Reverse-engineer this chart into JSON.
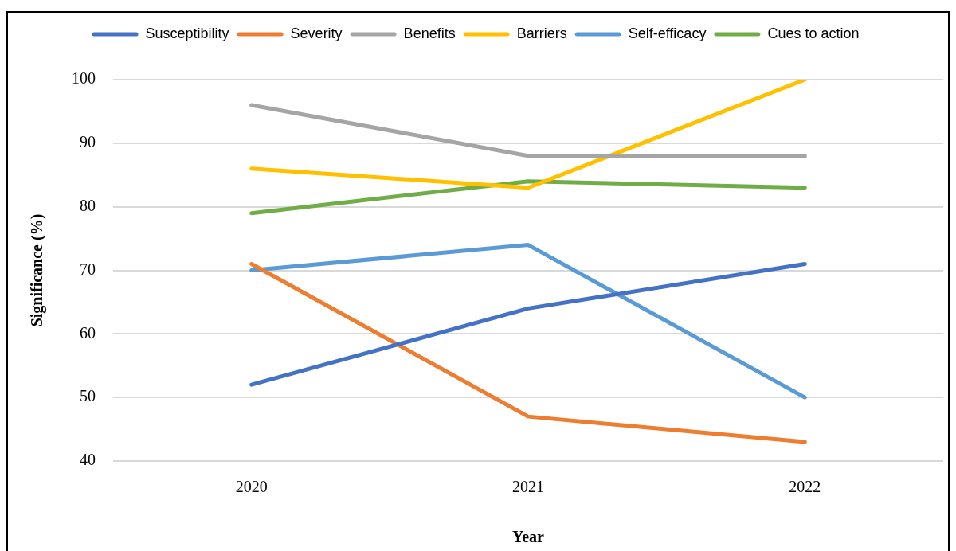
{
  "chart_data": {
    "type": "line",
    "xlabel": "Year",
    "ylabel": "Significance (%)",
    "categories": [
      "2020",
      "2021",
      "2022"
    ],
    "series": [
      {
        "name": "Susceptibility",
        "color": "#4472c4",
        "values": [
          52,
          64,
          71
        ]
      },
      {
        "name": "Severity",
        "color": "#ed7d31",
        "values": [
          71,
          47,
          43
        ]
      },
      {
        "name": "Benefits",
        "color": "#a5a5a5",
        "values": [
          96,
          88,
          88
        ]
      },
      {
        "name": "Barriers",
        "color": "#ffc000",
        "values": [
          86,
          83,
          100
        ]
      },
      {
        "name": "Self-efficacy",
        "color": "#5b9bd5",
        "values": [
          70,
          74,
          50
        ]
      },
      {
        "name": "Cues to action",
        "color": "#70ad47",
        "values": [
          79,
          84,
          83
        ]
      }
    ],
    "ylim": [
      40,
      100
    ],
    "yticks": [
      40,
      50,
      60,
      70,
      80,
      90,
      100
    ],
    "grid": "y",
    "legend": "top"
  }
}
